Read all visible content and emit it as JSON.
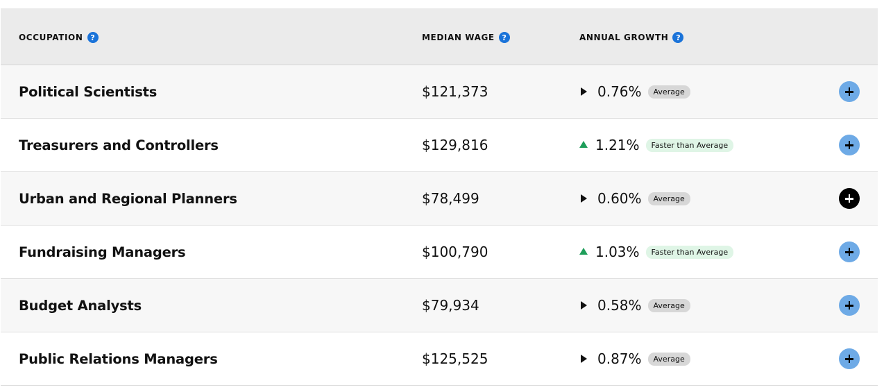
{
  "header": {
    "occupation": "OCCUPATION",
    "median_wage": "MEDIAN WAGE",
    "annual_growth": "ANNUAL GROWTH",
    "help_glyph": "?"
  },
  "rows": [
    {
      "name": "Political Scientists",
      "wage": "$121,373",
      "growth": "0.76%",
      "trend": "neutral",
      "badge": "Average"
    },
    {
      "name": "Treasurers and Controllers",
      "wage": "$129,816",
      "growth": "1.21%",
      "trend": "up",
      "badge": "Faster than Average"
    },
    {
      "name": "Urban and Regional Planners",
      "wage": "$78,499",
      "growth": "0.60%",
      "trend": "neutral",
      "badge": "Average"
    },
    {
      "name": "Fundraising Managers",
      "wage": "$100,790",
      "growth": "1.03%",
      "trend": "up",
      "badge": "Faster than Average"
    },
    {
      "name": "Budget Analysts",
      "wage": "$79,934",
      "growth": "0.58%",
      "trend": "neutral",
      "badge": "Average"
    },
    {
      "name": "Public Relations Managers",
      "wage": "$125,525",
      "growth": "0.87%",
      "trend": "neutral",
      "badge": "Average"
    }
  ],
  "colors": {
    "help_icon": "#1a73d9",
    "expand_button": "#6eaae6",
    "expand_button_active": "#000000",
    "up_arrow": "#1e9e5a",
    "badge_average": "#d7d7d7",
    "badge_faster": "#dff5e6"
  },
  "icons": {
    "help": "question-circle-icon",
    "neutral_trend": "triangle-right-icon",
    "up_trend": "triangle-up-icon",
    "expand": "plus-circle-icon"
  },
  "active_expand_row": 2
}
